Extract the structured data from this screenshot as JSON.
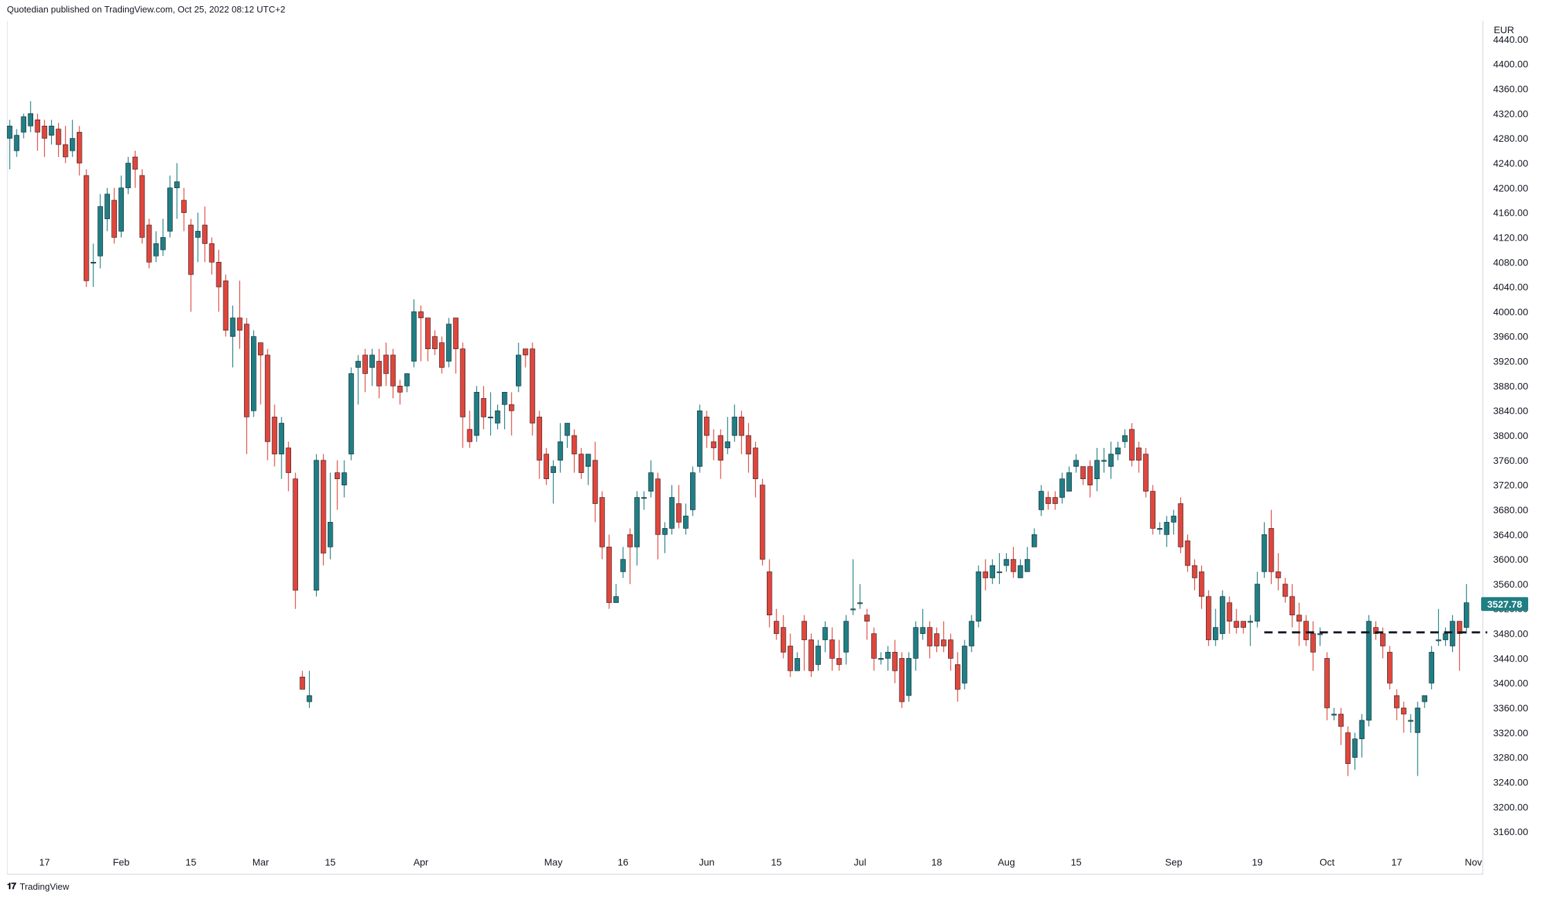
{
  "publish_info": "Quotedian published on TradingView.com, Oct 25, 2022 08:12 UTC+2",
  "brand": {
    "icon": "tradingview-logo-icon",
    "label": "TradingView"
  },
  "colors": {
    "up": "#1f7f84",
    "down": "#e0463b",
    "level_line": "#131722",
    "price_badge": "#1f7f84"
  },
  "chart_data": {
    "type": "candlestick",
    "currency": "EUR",
    "ylim": [
      3130,
      4470
    ],
    "y_ticks": [
      3160,
      3200,
      3240,
      3280,
      3320,
      3360,
      3400,
      3440,
      3480,
      3520,
      3560,
      3600,
      3640,
      3680,
      3720,
      3760,
      3800,
      3840,
      3880,
      3920,
      3960,
      4000,
      4040,
      4080,
      4120,
      4160,
      4200,
      4240,
      4280,
      4320,
      4360,
      4400,
      4440
    ],
    "y_tick_labels": [
      "3160.00",
      "3200.00",
      "3240.00",
      "3280.00",
      "3320.00",
      "3360.00",
      "3400.00",
      "3440.00",
      "3480.00",
      "3520.00",
      "3560.00",
      "3600.00",
      "3640.00",
      "3680.00",
      "3720.00",
      "3760.00",
      "3800.00",
      "3840.00",
      "3880.00",
      "3920.00",
      "3960.00",
      "4000.00",
      "4040.00",
      "4080.00",
      "4120.00",
      "4160.00",
      "4200.00",
      "4240.00",
      "4280.00",
      "4320.00",
      "4360.00",
      "4400.00",
      "4440.00"
    ],
    "x_ticks": [
      {
        "label": "17",
        "index": 5
      },
      {
        "label": "Feb",
        "index": 16
      },
      {
        "label": "15",
        "index": 26
      },
      {
        "label": "Mar",
        "index": 36
      },
      {
        "label": "15",
        "index": 46
      },
      {
        "label": "Apr",
        "index": 59
      },
      {
        "label": "May",
        "index": 78
      },
      {
        "label": "16",
        "index": 88
      },
      {
        "label": "Jun",
        "index": 100
      },
      {
        "label": "15",
        "index": 110
      },
      {
        "label": "Jul",
        "index": 122
      },
      {
        "label": "18",
        "index": 133
      },
      {
        "label": "Aug",
        "index": 143
      },
      {
        "label": "15",
        "index": 153
      },
      {
        "label": "Sep",
        "index": 167
      },
      {
        "label": "19",
        "index": 179
      },
      {
        "label": "Oct",
        "index": 189
      },
      {
        "label": "17",
        "index": 199
      },
      {
        "label": "Nov",
        "index": 210
      }
    ],
    "last_price": "3527.78",
    "last_price_value": 3527.78,
    "level_line": {
      "value": 3482,
      "from_index": 180,
      "to_index": 210,
      "style": "dashed"
    },
    "candles": [
      [
        4280,
        4300,
        4230,
        4310
      ],
      [
        4260,
        4285,
        4250,
        4295
      ],
      [
        4290,
        4315,
        4280,
        4320
      ],
      [
        4300,
        4320,
        4290,
        4340
      ],
      [
        4310,
        4290,
        4260,
        4320
      ],
      [
        4300,
        4280,
        4250,
        4310
      ],
      [
        4285,
        4300,
        4270,
        4310
      ],
      [
        4295,
        4270,
        4250,
        4305
      ],
      [
        4270,
        4250,
        4240,
        4300
      ],
      [
        4260,
        4280,
        4250,
        4310
      ],
      [
        4290,
        4240,
        4220,
        4300
      ],
      [
        4220,
        4050,
        4040,
        4230
      ],
      [
        4080,
        4080,
        4040,
        4110
      ],
      [
        4090,
        4170,
        4070,
        4190
      ],
      [
        4150,
        4190,
        4130,
        4200
      ],
      [
        4180,
        4120,
        4110,
        4200
      ],
      [
        4130,
        4200,
        4120,
        4220
      ],
      [
        4200,
        4240,
        4190,
        4250
      ],
      [
        4250,
        4230,
        4200,
        4260
      ],
      [
        4220,
        4120,
        4110,
        4230
      ],
      [
        4140,
        4080,
        4070,
        4150
      ],
      [
        4090,
        4110,
        4080,
        4130
      ],
      [
        4100,
        4120,
        4090,
        4150
      ],
      [
        4130,
        4200,
        4120,
        4220
      ],
      [
        4200,
        4210,
        4150,
        4240
      ],
      [
        4180,
        4160,
        4130,
        4200
      ],
      [
        4140,
        4060,
        4000,
        4150
      ],
      [
        4120,
        4130,
        4080,
        4160
      ],
      [
        4140,
        4110,
        4080,
        4170
      ],
      [
        4110,
        4080,
        4060,
        4120
      ],
      [
        4080,
        4040,
        4000,
        4100
      ],
      [
        4050,
        3970,
        3960,
        4060
      ],
      [
        3960,
        3990,
        3910,
        4010
      ],
      [
        3990,
        3970,
        3940,
        4050
      ],
      [
        3980,
        3830,
        3770,
        3990
      ],
      [
        3840,
        3960,
        3830,
        3970
      ],
      [
        3950,
        3930,
        3850,
        3950
      ],
      [
        3930,
        3790,
        3760,
        3940
      ],
      [
        3830,
        3770,
        3750,
        3850
      ],
      [
        3770,
        3820,
        3730,
        3830
      ],
      [
        3780,
        3740,
        3710,
        3790
      ],
      [
        3730,
        3550,
        3520,
        3740
      ],
      [
        3410,
        3390,
        3390,
        3420
      ],
      [
        3370,
        3380,
        3360,
        3420
      ],
      [
        3550,
        3760,
        3540,
        3770
      ],
      [
        3760,
        3610,
        3590,
        3770
      ],
      [
        3620,
        3660,
        3600,
        3740
      ],
      [
        3740,
        3730,
        3680,
        3760
      ],
      [
        3720,
        3740,
        3700,
        3760
      ],
      [
        3770,
        3900,
        3760,
        3910
      ],
      [
        3910,
        3920,
        3850,
        3930
      ],
      [
        3930,
        3900,
        3870,
        3940
      ],
      [
        3910,
        3930,
        3880,
        3940
      ],
      [
        3920,
        3880,
        3860,
        3940
      ],
      [
        3930,
        3900,
        3880,
        3950
      ],
      [
        3930,
        3880,
        3860,
        3940
      ],
      [
        3880,
        3870,
        3850,
        3890
      ],
      [
        3880,
        3900,
        3870,
        3900
      ],
      [
        3920,
        4000,
        3910,
        4020
      ],
      [
        4000,
        3990,
        3920,
        4010
      ],
      [
        3990,
        3940,
        3920,
        3990
      ],
      [
        3960,
        3940,
        3930,
        3970
      ],
      [
        3950,
        3910,
        3900,
        3960
      ],
      [
        3920,
        3980,
        3910,
        3990
      ],
      [
        3990,
        3940,
        3900,
        3990
      ],
      [
        3940,
        3830,
        3780,
        3950
      ],
      [
        3810,
        3790,
        3780,
        3840
      ],
      [
        3800,
        3870,
        3790,
        3880
      ],
      [
        3860,
        3830,
        3810,
        3880
      ],
      [
        3830,
        3830,
        3800,
        3870
      ],
      [
        3820,
        3840,
        3810,
        3850
      ],
      [
        3850,
        3870,
        3810,
        3860
      ],
      [
        3850,
        3840,
        3800,
        3870
      ],
      [
        3880,
        3930,
        3870,
        3950
      ],
      [
        3940,
        3930,
        3910,
        3940
      ],
      [
        3940,
        3820,
        3800,
        3950
      ],
      [
        3830,
        3760,
        3730,
        3840
      ],
      [
        3770,
        3730,
        3720,
        3780
      ],
      [
        3740,
        3750,
        3690,
        3760
      ],
      [
        3760,
        3790,
        3740,
        3820
      ],
      [
        3800,
        3820,
        3780,
        3820
      ],
      [
        3800,
        3770,
        3740,
        3810
      ],
      [
        3770,
        3740,
        3730,
        3780
      ],
      [
        3750,
        3770,
        3720,
        3760
      ],
      [
        3760,
        3690,
        3660,
        3790
      ],
      [
        3700,
        3620,
        3600,
        3710
      ],
      [
        3620,
        3530,
        3520,
        3640
      ],
      [
        3530,
        3540,
        3530,
        3560
      ],
      [
        3580,
        3600,
        3570,
        3620
      ],
      [
        3640,
        3620,
        3560,
        3650
      ],
      [
        3620,
        3700,
        3590,
        3710
      ],
      [
        3700,
        3700,
        3680,
        3710
      ],
      [
        3710,
        3740,
        3700,
        3760
      ],
      [
        3730,
        3640,
        3600,
        3740
      ],
      [
        3640,
        3650,
        3610,
        3660
      ],
      [
        3650,
        3700,
        3640,
        3720
      ],
      [
        3690,
        3660,
        3650,
        3720
      ],
      [
        3650,
        3670,
        3640,
        3690
      ],
      [
        3680,
        3740,
        3670,
        3750
      ],
      [
        3750,
        3840,
        3740,
        3850
      ],
      [
        3830,
        3800,
        3780,
        3840
      ],
      [
        3790,
        3780,
        3760,
        3810
      ],
      [
        3800,
        3760,
        3730,
        3810
      ],
      [
        3780,
        3790,
        3770,
        3830
      ],
      [
        3800,
        3830,
        3790,
        3850
      ],
      [
        3830,
        3800,
        3770,
        3840
      ],
      [
        3800,
        3770,
        3740,
        3820
      ],
      [
        3780,
        3730,
        3700,
        3790
      ],
      [
        3720,
        3600,
        3590,
        3730
      ],
      [
        3580,
        3510,
        3490,
        3600
      ],
      [
        3500,
        3480,
        3470,
        3520
      ],
      [
        3490,
        3450,
        3440,
        3510
      ],
      [
        3460,
        3420,
        3410,
        3480
      ],
      [
        3420,
        3440,
        3420,
        3450
      ],
      [
        3500,
        3470,
        3420,
        3510
      ],
      [
        3470,
        3420,
        3410,
        3480
      ],
      [
        3430,
        3460,
        3420,
        3470
      ],
      [
        3470,
        3490,
        3450,
        3500
      ],
      [
        3470,
        3440,
        3420,
        3490
      ],
      [
        3440,
        3430,
        3420,
        3470
      ],
      [
        3450,
        3500,
        3430,
        3510
      ],
      [
        3520,
        3520,
        3510,
        3600
      ],
      [
        3530,
        3530,
        3520,
        3560
      ],
      [
        3510,
        3500,
        3470,
        3520
      ],
      [
        3480,
        3440,
        3420,
        3490
      ],
      [
        3440,
        3440,
        3430,
        3450
      ],
      [
        3440,
        3450,
        3420,
        3460
      ],
      [
        3450,
        3420,
        3400,
        3470
      ],
      [
        3440,
        3370,
        3360,
        3450
      ],
      [
        3380,
        3440,
        3370,
        3450
      ],
      [
        3440,
        3490,
        3420,
        3500
      ],
      [
        3480,
        3490,
        3470,
        3520
      ],
      [
        3490,
        3460,
        3440,
        3500
      ],
      [
        3480,
        3460,
        3450,
        3490
      ],
      [
        3470,
        3460,
        3450,
        3500
      ],
      [
        3470,
        3440,
        3420,
        3480
      ],
      [
        3430,
        3390,
        3370,
        3450
      ],
      [
        3400,
        3460,
        3390,
        3470
      ],
      [
        3460,
        3500,
        3450,
        3510
      ],
      [
        3500,
        3580,
        3490,
        3590
      ],
      [
        3580,
        3570,
        3550,
        3600
      ],
      [
        3570,
        3590,
        3560,
        3600
      ],
      [
        3580,
        3580,
        3560,
        3610
      ],
      [
        3590,
        3600,
        3580,
        3610
      ],
      [
        3600,
        3580,
        3570,
        3620
      ],
      [
        3570,
        3590,
        3570,
        3600
      ],
      [
        3580,
        3600,
        3580,
        3620
      ],
      [
        3620,
        3640,
        3620,
        3650
      ],
      [
        3680,
        3710,
        3670,
        3720
      ],
      [
        3700,
        3690,
        3680,
        3710
      ],
      [
        3700,
        3690,
        3680,
        3710
      ],
      [
        3700,
        3730,
        3690,
        3740
      ],
      [
        3710,
        3740,
        3710,
        3750
      ],
      [
        3750,
        3760,
        3740,
        3770
      ],
      [
        3750,
        3730,
        3720,
        3750
      ],
      [
        3750,
        3720,
        3700,
        3760
      ],
      [
        3730,
        3760,
        3710,
        3780
      ],
      [
        3760,
        3760,
        3740,
        3780
      ],
      [
        3750,
        3770,
        3730,
        3790
      ],
      [
        3770,
        3780,
        3760,
        3790
      ],
      [
        3790,
        3800,
        3780,
        3810
      ],
      [
        3810,
        3760,
        3750,
        3820
      ],
      [
        3780,
        3760,
        3740,
        3790
      ],
      [
        3770,
        3710,
        3700,
        3780
      ],
      [
        3710,
        3650,
        3640,
        3720
      ],
      [
        3650,
        3650,
        3640,
        3660
      ],
      [
        3640,
        3660,
        3620,
        3670
      ],
      [
        3660,
        3670,
        3640,
        3680
      ],
      [
        3690,
        3620,
        3610,
        3700
      ],
      [
        3630,
        3590,
        3580,
        3640
      ],
      [
        3590,
        3570,
        3550,
        3600
      ],
      [
        3580,
        3540,
        3520,
        3590
      ],
      [
        3540,
        3470,
        3460,
        3550
      ],
      [
        3470,
        3490,
        3460,
        3520
      ],
      [
        3480,
        3540,
        3470,
        3550
      ],
      [
        3530,
        3500,
        3480,
        3540
      ],
      [
        3500,
        3490,
        3480,
        3520
      ],
      [
        3500,
        3490,
        3480,
        3500
      ],
      [
        3500,
        3500,
        3460,
        3510
      ],
      [
        3500,
        3560,
        3490,
        3580
      ],
      [
        3580,
        3640,
        3570,
        3660
      ],
      [
        3650,
        3580,
        3560,
        3680
      ],
      [
        3580,
        3570,
        3550,
        3610
      ],
      [
        3560,
        3540,
        3530,
        3570
      ],
      [
        3540,
        3510,
        3490,
        3560
      ],
      [
        3510,
        3500,
        3460,
        3530
      ],
      [
        3500,
        3470,
        3460,
        3510
      ],
      [
        3480,
        3450,
        3420,
        3500
      ],
      [
        3480,
        3480,
        3460,
        3490
      ],
      [
        3440,
        3360,
        3340,
        3450
      ],
      [
        3350,
        3350,
        3340,
        3360
      ],
      [
        3350,
        3330,
        3300,
        3360
      ],
      [
        3320,
        3270,
        3250,
        3330
      ],
      [
        3280,
        3310,
        3260,
        3320
      ],
      [
        3310,
        3340,
        3280,
        3350
      ],
      [
        3340,
        3500,
        3330,
        3510
      ],
      [
        3490,
        3480,
        3470,
        3500
      ],
      [
        3480,
        3460,
        3440,
        3490
      ],
      [
        3450,
        3400,
        3390,
        3460
      ],
      [
        3380,
        3360,
        3340,
        3390
      ],
      [
        3360,
        3350,
        3320,
        3370
      ],
      [
        3340,
        3340,
        3320,
        3350
      ],
      [
        3320,
        3360,
        3250,
        3370
      ],
      [
        3370,
        3380,
        3360,
        3380
      ],
      [
        3400,
        3450,
        3390,
        3460
      ],
      [
        3470,
        3470,
        3460,
        3520
      ],
      [
        3470,
        3480,
        3460,
        3490
      ],
      [
        3460,
        3500,
        3450,
        3510
      ],
      [
        3500,
        3480,
        3420,
        3500
      ],
      [
        3490,
        3530,
        3480,
        3560
      ]
    ]
  }
}
